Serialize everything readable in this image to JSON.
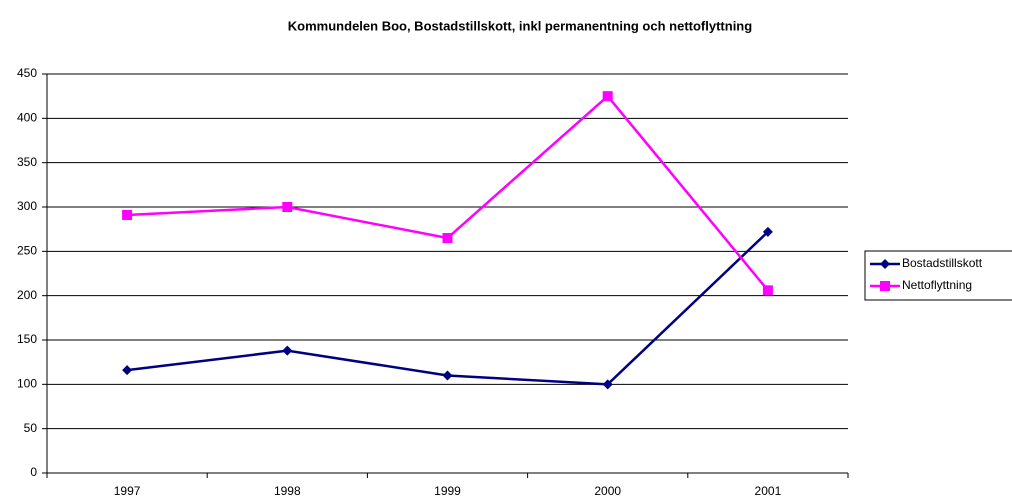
{
  "chart_data": {
    "type": "line",
    "title": "Kommundelen Boo, Bostadstillskott, inkl permanentning och nettoflyttning",
    "categories": [
      "1997",
      "1998",
      "1999",
      "2000",
      "2001"
    ],
    "series": [
      {
        "name": "Bostadstillskott",
        "color": "#000080",
        "marker": "diamond",
        "values": [
          116,
          138,
          110,
          100,
          272
        ]
      },
      {
        "name": "Nettoflyttning",
        "color": "#ff00ff",
        "marker": "square",
        "values": [
          291,
          300,
          265,
          425,
          206
        ]
      }
    ],
    "ylim": [
      0,
      450
    ],
    "yticks": [
      0,
      50,
      100,
      150,
      200,
      250,
      300,
      350,
      400,
      450
    ],
    "grid": true,
    "legend": "right"
  }
}
